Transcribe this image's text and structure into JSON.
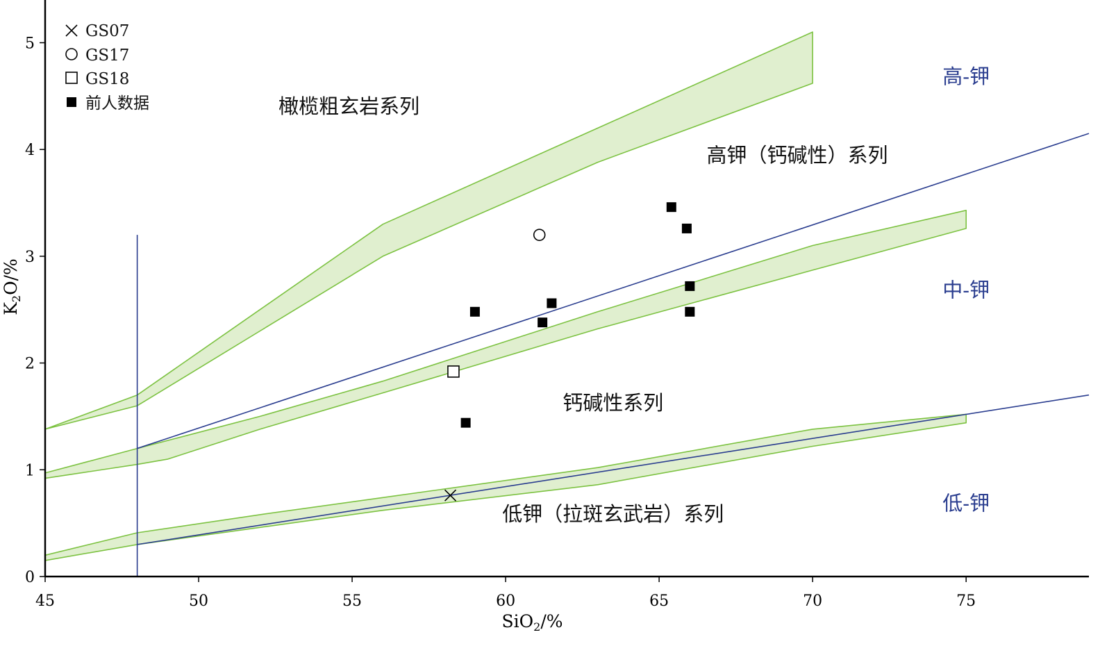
{
  "chart_data": {
    "type": "scatter",
    "xlabel": {
      "base": "SiO",
      "sub": "2",
      "tail": "/%"
    },
    "ylabel": {
      "base": "K",
      "sub": "2",
      "tail": "O/%"
    },
    "xlim": [
      45,
      79
    ],
    "ylim": [
      0,
      5.4
    ],
    "xticks": [
      45,
      50,
      55,
      60,
      65,
      70,
      75
    ],
    "yticks": [
      0,
      1,
      2,
      3,
      4,
      5
    ],
    "grid": false,
    "legend": {
      "position": "top-left",
      "entries": [
        {
          "label": "GS07",
          "marker": "x-cross"
        },
        {
          "label": "GS17",
          "marker": "open-circle"
        },
        {
          "label": "GS18",
          "marker": "open-square"
        },
        {
          "label": "前人数据",
          "marker": "filled-square"
        }
      ]
    },
    "series": [
      {
        "name": "GS07",
        "marker": "x-cross",
        "points": [
          [
            58.2,
            0.76
          ]
        ]
      },
      {
        "name": "GS17",
        "marker": "open-circle",
        "points": [
          [
            61.1,
            3.2
          ]
        ]
      },
      {
        "name": "GS18",
        "marker": "open-square",
        "points": [
          [
            58.3,
            1.92
          ]
        ]
      },
      {
        "name": "前人数据",
        "marker": "filled-square",
        "points": [
          [
            59.0,
            2.48
          ],
          [
            58.7,
            1.44
          ],
          [
            61.2,
            2.38
          ],
          [
            61.5,
            2.56
          ],
          [
            65.4,
            3.46
          ],
          [
            65.9,
            3.26
          ],
          [
            66.0,
            2.72
          ],
          [
            66.0,
            2.48
          ]
        ]
      }
    ],
    "boundary_lines": [
      {
        "points": [
          [
            48,
            0
          ],
          [
            48,
            3.2
          ]
        ]
      },
      {
        "points": [
          [
            48,
            1.2
          ],
          [
            79,
            4.15
          ]
        ]
      },
      {
        "points": [
          [
            48,
            0.3
          ],
          [
            79,
            1.7
          ]
        ]
      }
    ],
    "boundary_bands": [
      {
        "upper": [
          [
            45,
            1.38
          ],
          [
            48,
            1.7
          ],
          [
            52,
            2.5
          ],
          [
            56,
            3.3
          ],
          [
            63,
            4.2
          ],
          [
            70,
            5.1
          ]
        ],
        "lower": [
          [
            45,
            1.38
          ],
          [
            48,
            1.6
          ],
          [
            52,
            2.3
          ],
          [
            56,
            3.0
          ],
          [
            63,
            3.88
          ],
          [
            70,
            4.62
          ]
        ]
      },
      {
        "upper": [
          [
            45,
            0.97
          ],
          [
            48,
            1.2
          ],
          [
            52,
            1.5
          ],
          [
            56,
            1.83
          ],
          [
            63,
            2.48
          ],
          [
            70,
            3.1
          ],
          [
            75,
            3.43
          ]
        ],
        "lower": [
          [
            45,
            0.92
          ],
          [
            48,
            1.05
          ],
          [
            49,
            1.1
          ],
          [
            52,
            1.38
          ],
          [
            56,
            1.72
          ],
          [
            63,
            2.32
          ],
          [
            70,
            2.87
          ],
          [
            75,
            3.26
          ]
        ]
      },
      {
        "upper": [
          [
            45,
            0.2
          ],
          [
            48,
            0.41
          ],
          [
            52,
            0.58
          ],
          [
            56,
            0.74
          ],
          [
            63,
            1.02
          ],
          [
            70,
            1.38
          ],
          [
            75,
            1.52
          ]
        ],
        "lower": [
          [
            45,
            0.15
          ],
          [
            48,
            0.3
          ],
          [
            52,
            0.46
          ],
          [
            56,
            0.62
          ],
          [
            63,
            0.86
          ],
          [
            70,
            1.22
          ],
          [
            75,
            1.44
          ]
        ]
      }
    ],
    "field_labels": [
      {
        "text": "橄榄粗玄岩系列",
        "x": 54.9,
        "y": 4.34
      },
      {
        "text": "高钾（钙碱性）系列",
        "x": 69.5,
        "y": 3.88
      },
      {
        "text": "钙碱性系列",
        "x": 63.5,
        "y": 1.56
      },
      {
        "text": "低钾（拉斑玄武岩）系列",
        "x": 63.5,
        "y": 0.52
      }
    ],
    "k_labels": [
      {
        "text": "高-钾",
        "x": 75,
        "y": 4.62
      },
      {
        "text": "中-钾",
        "x": 75,
        "y": 2.62
      },
      {
        "text": "低-钾",
        "x": 75,
        "y": 0.62
      }
    ],
    "colors": {
      "axis": "#000000",
      "boundary_line": "#2a3d8f",
      "band_fill": "#e0efcf",
      "band_stroke": "#7cc241",
      "k_label": "#2a3d8f"
    }
  }
}
